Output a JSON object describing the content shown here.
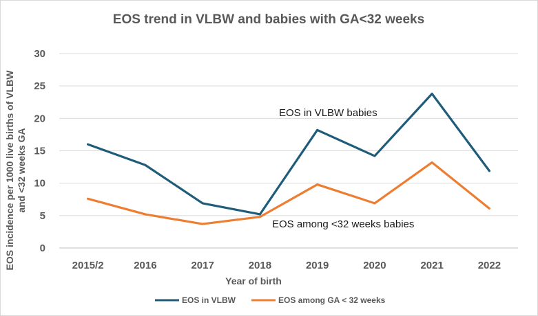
{
  "chart_data": {
    "type": "line",
    "title": "EOS trend in VLBW and babies with GA<32 weeks",
    "xlabel": "Year of birth",
    "ylabel_line1": "EOS incidence per 1000 live births of VLBW",
    "ylabel_line2": "and  <32 weeks GA",
    "ylim": [
      0,
      30
    ],
    "yticks": [
      0,
      5,
      10,
      15,
      20,
      25,
      30
    ],
    "grid": true,
    "legend_position": "bottom",
    "categories": [
      "2015/2",
      "2016",
      "2017",
      "2018",
      "2019",
      "2020",
      "2021",
      "2022"
    ],
    "series": [
      {
        "name": "EOS in VLBW",
        "color": "#1F5C7A",
        "values": [
          16.0,
          12.8,
          6.9,
          5.2,
          18.2,
          14.2,
          23.8,
          11.9
        ],
        "annotation": "EOS in VLBW babies"
      },
      {
        "name": "EOS among GA < 32 weeks",
        "color": "#ED7D31",
        "values": [
          7.6,
          5.2,
          3.7,
          4.8,
          9.8,
          6.9,
          13.2,
          6.1
        ],
        "annotation": "EOS among <32 weeks babies"
      }
    ]
  }
}
